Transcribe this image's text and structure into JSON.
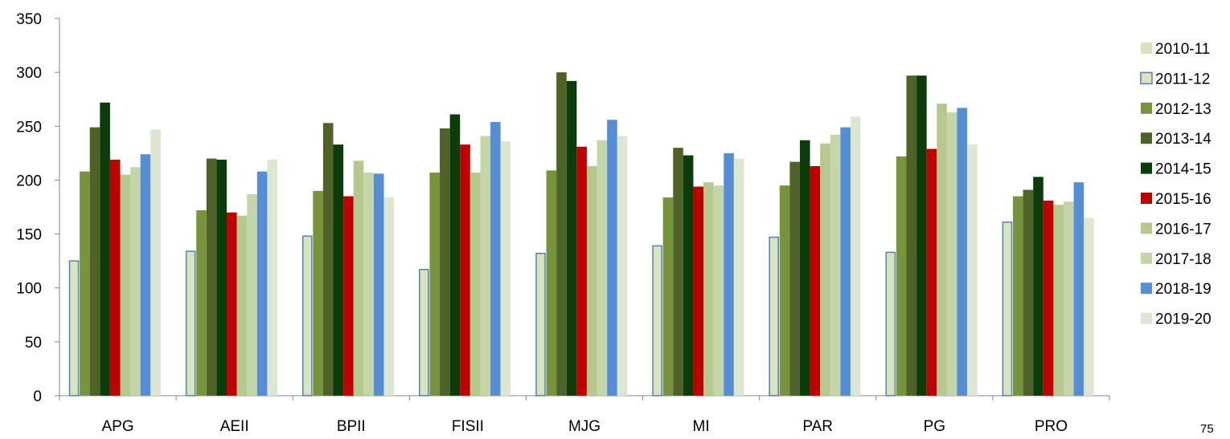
{
  "chart_data": {
    "type": "bar",
    "title": "",
    "xlabel": "",
    "ylabel": "",
    "ylim": [
      0,
      350
    ],
    "yticks": [
      0,
      50,
      100,
      150,
      200,
      250,
      300,
      350
    ],
    "categories": [
      "APG",
      "AEII",
      "BPII",
      "FISII",
      "MJG",
      "MI",
      "PAR",
      "PG",
      "PRO"
    ],
    "legend_position": "right",
    "grid": false,
    "series": [
      {
        "name": "2010-11",
        "color": "#d7e4bd",
        "values": [
          null,
          null,
          null,
          null,
          null,
          null,
          null,
          null,
          null
        ]
      },
      {
        "name": "2011-12",
        "color": "#d7e4bd",
        "outline": "#4f81bd",
        "values": [
          125,
          134,
          148,
          117,
          132,
          139,
          147,
          133,
          161
        ]
      },
      {
        "name": "2012-13",
        "color": "#77933c",
        "values": [
          208,
          172,
          190,
          207,
          209,
          184,
          195,
          222,
          185
        ]
      },
      {
        "name": "2013-14",
        "color": "#4f6228",
        "values": [
          249,
          220,
          253,
          248,
          300,
          230,
          217,
          297,
          191
        ]
      },
      {
        "name": "2014-15",
        "color": "#0b3d0b",
        "values": [
          272,
          219,
          233,
          261,
          292,
          223,
          237,
          297,
          203
        ]
      },
      {
        "name": "2015-16",
        "color": "#c00000",
        "values": [
          219,
          170,
          185,
          233,
          231,
          194,
          213,
          229,
          181
        ]
      },
      {
        "name": "2016-17",
        "color": "#b5c98f",
        "values": [
          205,
          167,
          218,
          207,
          213,
          198,
          234,
          271,
          177
        ]
      },
      {
        "name": "2017-18",
        "color": "#c4d5a7",
        "values": [
          212,
          187,
          207,
          241,
          237,
          195,
          242,
          263,
          180
        ]
      },
      {
        "name": "2018-19",
        "color": "#558ed5",
        "values": [
          224,
          208,
          206,
          254,
          256,
          225,
          249,
          267,
          198
        ]
      },
      {
        "name": "2019-20",
        "color": "#dde6d1",
        "values": [
          247,
          219,
          184,
          236,
          241,
          220,
          259,
          233,
          165
        ]
      }
    ]
  },
  "page_number": "75"
}
